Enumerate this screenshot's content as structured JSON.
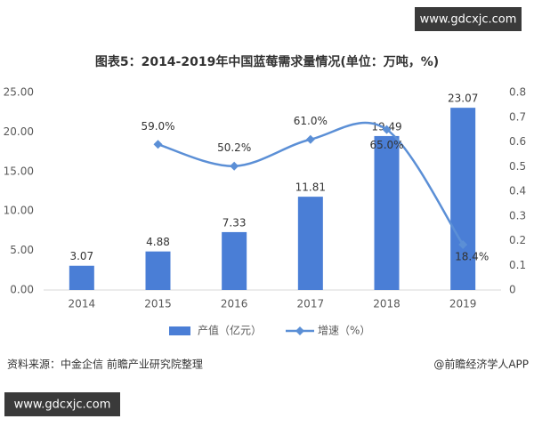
{
  "chart_data": {
    "type": "bar-line",
    "title": "图表5：2014-2019年中国蓝莓需求量情况(单位：万吨，%)",
    "categories": [
      "2014",
      "2015",
      "2016",
      "2017",
      "2018",
      "2019"
    ],
    "series": [
      {
        "name": "产值（亿元）",
        "type": "bar",
        "color": "#4a7ed6",
        "values": [
          3.07,
          4.88,
          7.33,
          11.81,
          19.49,
          23.07
        ]
      },
      {
        "name": "增速（%）",
        "type": "line",
        "axis": "y2",
        "color": "#5b8fd6",
        "values": [
          null,
          0.59,
          0.502,
          0.61,
          0.65,
          0.184
        ],
        "value_labels": [
          null,
          "59.0%",
          "50.2%",
          "61.0%",
          "65.0%",
          "18.4%"
        ]
      }
    ],
    "ylim": [
      0,
      25
    ],
    "yticks": [
      {
        "value": 0,
        "label": "0.00"
      },
      {
        "value": 5,
        "label": "5.00"
      },
      {
        "value": 10,
        "label": "10.00"
      },
      {
        "value": 15,
        "label": "15.00"
      },
      {
        "value": 20,
        "label": "20.00"
      },
      {
        "value": 25,
        "label": "25.00"
      }
    ],
    "y2lim": [
      0,
      0.8
    ],
    "y2ticks": [
      0,
      0.1,
      0.2,
      0.3,
      0.4,
      0.5,
      0.6,
      0.7,
      0.8
    ],
    "source": "资料来源：中金企信 前瞻产业研究院整理",
    "credit": "@前瞻经济学人APP",
    "watermarks": [
      "www.gdcxjc.com",
      "www.gdcxjc.com"
    ]
  }
}
